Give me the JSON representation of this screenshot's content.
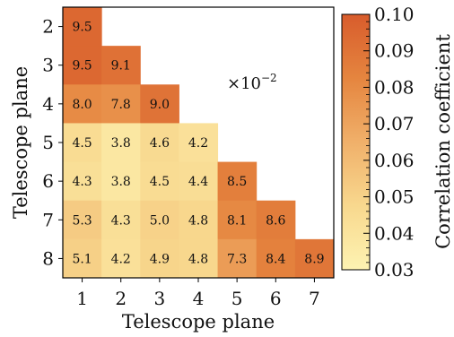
{
  "chart_data": {
    "type": "heatmap",
    "x_tick_labels": [
      "1",
      "2",
      "3",
      "4",
      "5",
      "6",
      "7"
    ],
    "y_tick_labels": [
      "2",
      "3",
      "4",
      "5",
      "6",
      "7",
      "8"
    ],
    "xlabel": "Telescope plane",
    "ylabel": "Telescope plane",
    "annotation": "×10",
    "annotation_exponent": "−2",
    "cells": [
      {
        "x": 1,
        "y": 2,
        "value": 9.5,
        "label": "9.5"
      },
      {
        "x": 1,
        "y": 3,
        "value": 9.5,
        "label": "9.5"
      },
      {
        "x": 2,
        "y": 3,
        "value": 9.1,
        "label": "9.1"
      },
      {
        "x": 1,
        "y": 4,
        "value": 8.0,
        "label": "8.0"
      },
      {
        "x": 2,
        "y": 4,
        "value": 7.8,
        "label": "7.8"
      },
      {
        "x": 3,
        "y": 4,
        "value": 9.0,
        "label": "9.0"
      },
      {
        "x": 1,
        "y": 5,
        "value": 4.5,
        "label": "4.5"
      },
      {
        "x": 2,
        "y": 5,
        "value": 3.8,
        "label": "3.8"
      },
      {
        "x": 3,
        "y": 5,
        "value": 4.6,
        "label": "4.6"
      },
      {
        "x": 4,
        "y": 5,
        "value": 4.2,
        "label": "4.2"
      },
      {
        "x": 1,
        "y": 6,
        "value": 4.3,
        "label": "4.3"
      },
      {
        "x": 2,
        "y": 6,
        "value": 3.8,
        "label": "3.8"
      },
      {
        "x": 3,
        "y": 6,
        "value": 4.5,
        "label": "4.5"
      },
      {
        "x": 4,
        "y": 6,
        "value": 4.4,
        "label": "4.4"
      },
      {
        "x": 5,
        "y": 6,
        "value": 8.5,
        "label": "8.5"
      },
      {
        "x": 1,
        "y": 7,
        "value": 5.3,
        "label": "5.3"
      },
      {
        "x": 2,
        "y": 7,
        "value": 4.3,
        "label": "4.3"
      },
      {
        "x": 3,
        "y": 7,
        "value": 5.0,
        "label": "5.0"
      },
      {
        "x": 4,
        "y": 7,
        "value": 4.8,
        "label": "4.8"
      },
      {
        "x": 5,
        "y": 7,
        "value": 8.1,
        "label": "8.1"
      },
      {
        "x": 6,
        "y": 7,
        "value": 8.6,
        "label": "8.6"
      },
      {
        "x": 1,
        "y": 8,
        "value": 5.1,
        "label": "5.1"
      },
      {
        "x": 2,
        "y": 8,
        "value": 4.2,
        "label": "4.2"
      },
      {
        "x": 3,
        "y": 8,
        "value": 4.9,
        "label": "4.9"
      },
      {
        "x": 4,
        "y": 8,
        "value": 4.8,
        "label": "4.8"
      },
      {
        "x": 5,
        "y": 8,
        "value": 7.3,
        "label": "7.3"
      },
      {
        "x": 6,
        "y": 8,
        "value": 8.4,
        "label": "8.4"
      },
      {
        "x": 7,
        "y": 8,
        "value": 8.9,
        "label": "8.9"
      }
    ],
    "colorbar": {
      "label": "Correlation coefficient",
      "range": [
        0.03,
        0.1
      ],
      "tick_labels": [
        "0.10",
        "0.09",
        "0.08",
        "0.07",
        "0.06",
        "0.05",
        "0.04",
        "0.03"
      ],
      "tick_values": [
        0.1,
        0.09,
        0.08,
        0.07,
        0.06,
        0.05,
        0.04,
        0.03
      ],
      "colormap_stops": [
        "#fdf3b2",
        "#f8d88e",
        "#f0b06a",
        "#e5853f",
        "#d85c2c"
      ]
    },
    "grid": false
  }
}
